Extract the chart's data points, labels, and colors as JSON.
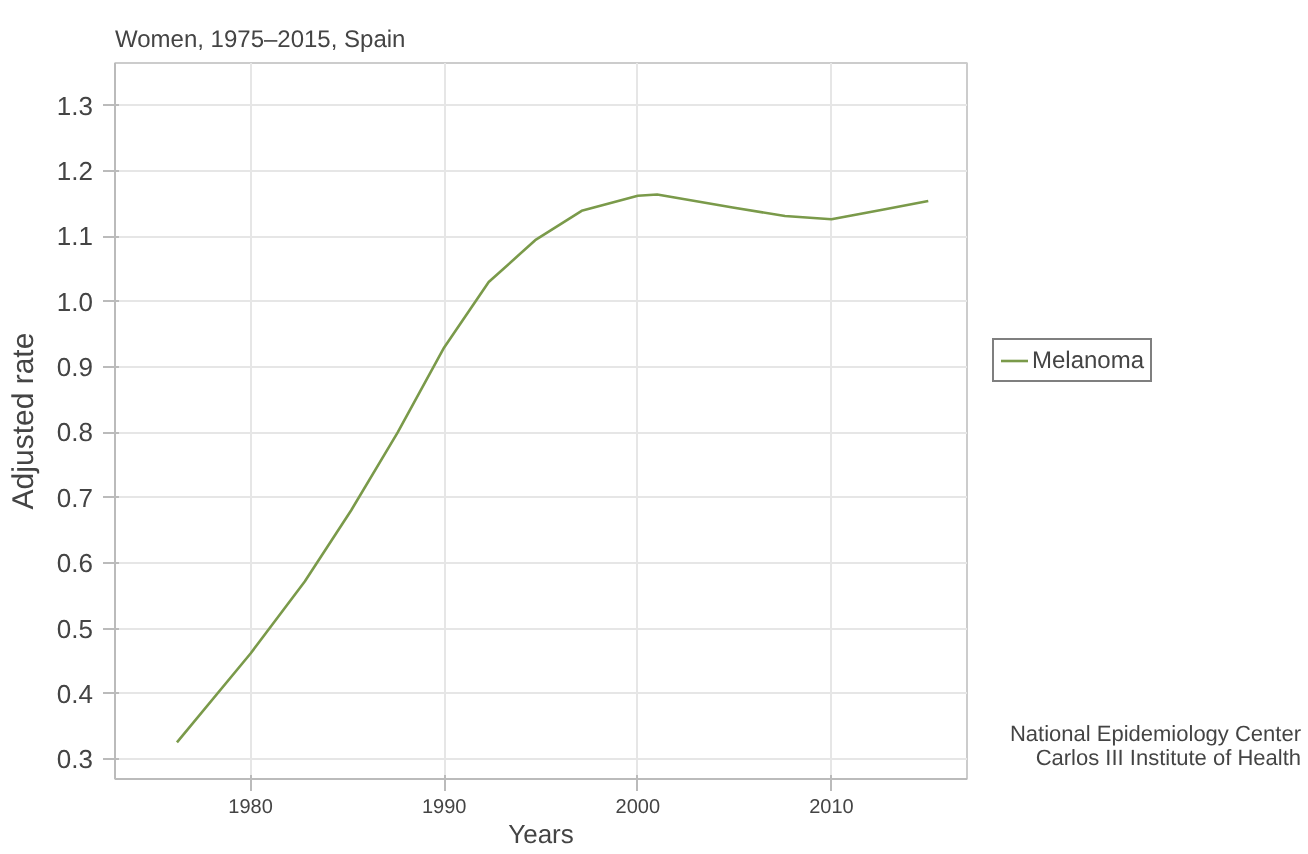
{
  "chart_data": {
    "type": "line",
    "title": "Women, 1975–2015, Spain",
    "xlabel": "Years",
    "ylabel": "Adjusted rate",
    "x": [
      1976.2,
      1980,
      1982.8,
      1985.2,
      1987.6,
      1990,
      1992.3,
      1994.7,
      1997.1,
      2000,
      2001,
      2004.9,
      2007.6,
      2010,
      2012.7,
      2015
    ],
    "series": [
      {
        "name": "Melanoma",
        "color": "#7a9a4a",
        "values": [
          0.326,
          0.462,
          0.572,
          0.681,
          0.8,
          0.93,
          1.03,
          1.094,
          1.139,
          1.162,
          1.164,
          1.144,
          1.131,
          1.126,
          1.141,
          1.154
        ]
      }
    ],
    "xlim": [
      1973,
      2017
    ],
    "ylim": [
      0.27,
      1.365
    ],
    "xticks": [
      1980,
      1990,
      2000,
      2010
    ],
    "yticks": [
      {
        "value": 0.3,
        "label": "0.3"
      },
      {
        "value": 0.4,
        "label": "0.4"
      },
      {
        "value": 0.5,
        "label": "0.5"
      },
      {
        "value": 0.6,
        "label": "0.6"
      },
      {
        "value": 0.7,
        "label": "0.7"
      },
      {
        "value": 0.8,
        "label": "0.8"
      },
      {
        "value": 0.9,
        "label": "0.9"
      },
      {
        "value": 1.0,
        "label": "1.0"
      },
      {
        "value": 1.1,
        "label": "1.1"
      },
      {
        "value": 1.2,
        "label": "1.2"
      },
      {
        "value": 1.3,
        "label": "1.3"
      }
    ],
    "grid": true,
    "legend": "right",
    "line_style": "solid",
    "annotations": [
      "National Epidemiology Center",
      "Carlos III Institute of Health"
    ]
  }
}
